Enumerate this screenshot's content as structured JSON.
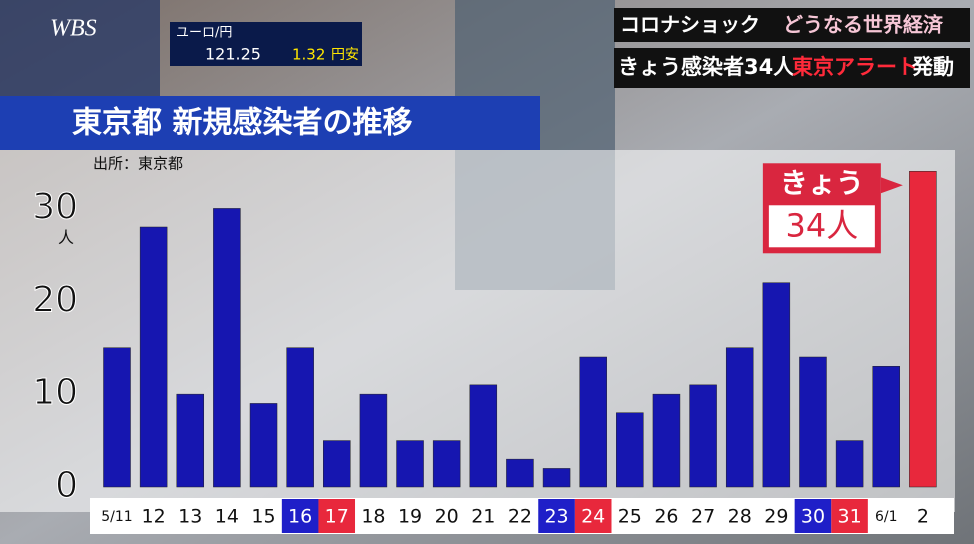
{
  "header": {
    "logo": "WBS",
    "fx_pair": "ユーロ/円",
    "fx_rate": "121.25",
    "fx_change": "1.32",
    "fx_direction": "円安",
    "headline_tag": "コロナショック",
    "headline_sub": "どうなる世界経済",
    "headline_main": "きょう感染者34人",
    "headline_alert": "東京アラート",
    "headline_end": "発動"
  },
  "chart_data": {
    "type": "bar",
    "title": "東京都 新規感染者の推移",
    "source": "出所：東京都",
    "y_unit": "人",
    "categories": [
      "5/11",
      "12",
      "13",
      "14",
      "15",
      "16",
      "17",
      "18",
      "19",
      "20",
      "21",
      "22",
      "23",
      "24",
      "25",
      "26",
      "27",
      "28",
      "29",
      "30",
      "31",
      "6/1",
      "2"
    ],
    "category_colors": [
      "#ffffff",
      "#ffffff",
      "#ffffff",
      "#ffffff",
      "#ffffff",
      "#1f1fc8",
      "#e8283c",
      "#ffffff",
      "#ffffff",
      "#ffffff",
      "#ffffff",
      "#ffffff",
      "#1f1fc8",
      "#e8283c",
      "#ffffff",
      "#ffffff",
      "#ffffff",
      "#ffffff",
      "#ffffff",
      "#1f1fc8",
      "#e8283c",
      "#ffffff",
      "#ffffff"
    ],
    "values": [
      15,
      28,
      10,
      30,
      9,
      15,
      5,
      10,
      5,
      5,
      11,
      3,
      2,
      14,
      8,
      10,
      11,
      15,
      22,
      14,
      5,
      13,
      34
    ],
    "colors": [
      "#1616b0",
      "#1616b0",
      "#1616b0",
      "#1616b0",
      "#1616b0",
      "#1616b0",
      "#1616b0",
      "#1616b0",
      "#1616b0",
      "#1616b0",
      "#1616b0",
      "#1616b0",
      "#1616b0",
      "#1616b0",
      "#1616b0",
      "#1616b0",
      "#1616b0",
      "#1616b0",
      "#1616b0",
      "#1616b0",
      "#1616b0",
      "#1616b0",
      "#e8283c"
    ],
    "ylim": [
      0,
      35
    ],
    "yticks": [
      0,
      10,
      20,
      30
    ],
    "grid": false,
    "callout": {
      "line1": "きょう",
      "line2": "34人"
    }
  }
}
